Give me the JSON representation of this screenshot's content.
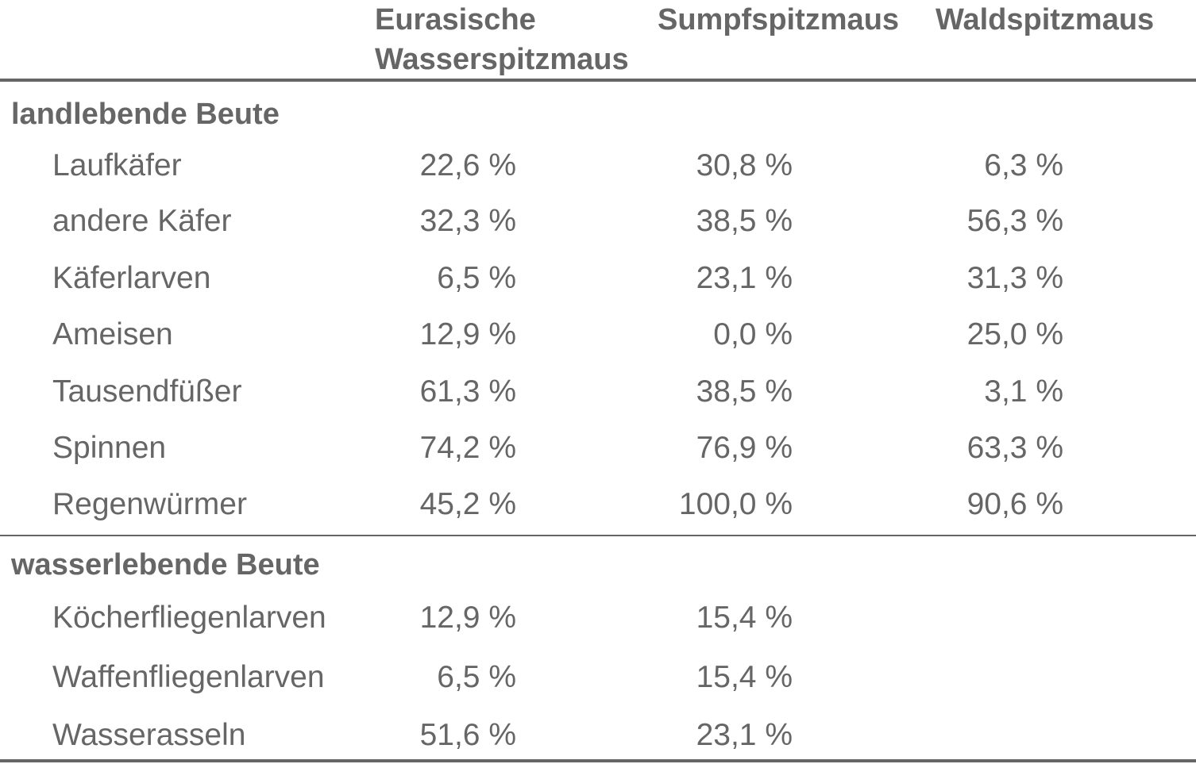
{
  "chart_data": {
    "type": "table",
    "columns": [
      "",
      "Eurasische\nWasserspitzmaus",
      "Sumpfspitzmaus",
      "Waldspitzmaus"
    ],
    "sections": [
      {
        "title": "landlebende Beute",
        "rows": [
          {
            "label": "Laufkäfer",
            "values": [
              "22,6 %",
              "30,8 %",
              "6,3 %"
            ]
          },
          {
            "label": "andere Käfer",
            "values": [
              "32,3 %",
              "38,5 %",
              "56,3 %"
            ]
          },
          {
            "label": "Käferlarven",
            "values": [
              "6,5 %",
              "23,1 %",
              "31,3 %"
            ]
          },
          {
            "label": "Ameisen",
            "values": [
              "12,9 %",
              "0,0 %",
              "25,0 %"
            ]
          },
          {
            "label": "Tausendfüßer",
            "values": [
              "61,3 %",
              "38,5 %",
              "3,1 %"
            ]
          },
          {
            "label": "Spinnen",
            "values": [
              "74,2 %",
              "76,9 %",
              "63,3 %"
            ]
          },
          {
            "label": "Regenwürmer",
            "values": [
              "45,2 %",
              "100,0 %",
              "90,6 %"
            ]
          }
        ]
      },
      {
        "title": "wasserlebende Beute",
        "rows": [
          {
            "label": "Köcherfliegenlarven",
            "values": [
              "12,9 %",
              "15,4 %",
              ""
            ]
          },
          {
            "label": "Waffenfliegenlarven",
            "values": [
              "6,5 %",
              "15,4 %",
              ""
            ]
          },
          {
            "label": "Wasserasseln",
            "values": [
              "51,6 %",
              "23,1 %",
              ""
            ]
          }
        ]
      }
    ]
  }
}
